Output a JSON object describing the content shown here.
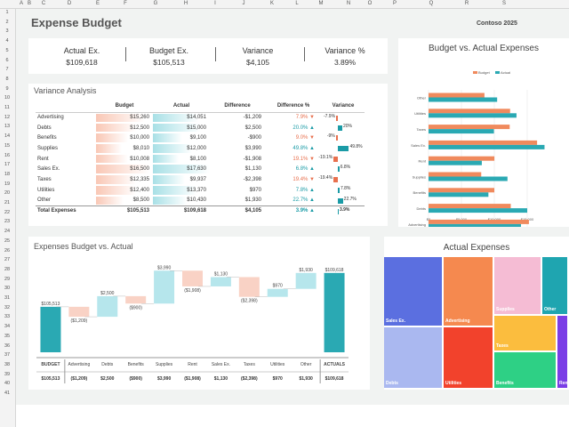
{
  "spreadsheet": {
    "columns": [
      "A",
      "B",
      "C",
      "D",
      "E",
      "F",
      "G",
      "H",
      "I",
      "J",
      "K",
      "L",
      "M",
      "N",
      "O",
      "P",
      "Q",
      "R",
      "S"
    ],
    "rows": [
      "1",
      "2",
      "3",
      "4",
      "5",
      "6",
      "7",
      "8",
      "9",
      "10",
      "11",
      "12",
      "13",
      "14",
      "15",
      "16",
      "17",
      "18",
      "19",
      "20",
      "21",
      "22",
      "23",
      "24",
      "25",
      "26",
      "27",
      "28",
      "29",
      "30",
      "31",
      "32",
      "33",
      "34",
      "35",
      "36",
      "37",
      "38",
      "39",
      "40",
      "41"
    ]
  },
  "header": {
    "title": "Expense Budget",
    "company": "Contoso 2025"
  },
  "kpis": [
    {
      "label": "Actual Ex.",
      "value": "$109,618"
    },
    {
      "label": "Budget Ex.",
      "value": "$105,513"
    },
    {
      "label": "Variance",
      "value": "$4,105"
    },
    {
      "label": "Variance %",
      "value": "3.89%"
    }
  ],
  "variance_analysis": {
    "title": "Variance Analysis",
    "headers": [
      "",
      "Budget",
      "Actual",
      "Difference",
      "Difference %",
      "Variance"
    ],
    "rows": [
      {
        "category": "Advertising",
        "budget": "$15,260",
        "actual": "$14,051",
        "difference": "-$1,209",
        "pct": "7.9%",
        "dir": "down",
        "variance": "-7.9%",
        "v": -7.9,
        "b": 15260,
        "a": 14051
      },
      {
        "category": "Debts",
        "budget": "$12,500",
        "actual": "$15,000",
        "difference": "$2,500",
        "pct": "20.0%",
        "dir": "up",
        "variance": "20%",
        "v": 20,
        "b": 12500,
        "a": 15000
      },
      {
        "category": "Benefits",
        "budget": "$10,000",
        "actual": "$9,100",
        "difference": "-$900",
        "pct": "9.0%",
        "dir": "down",
        "variance": "-9%",
        "v": -9,
        "b": 10000,
        "a": 9100
      },
      {
        "category": "Supplies",
        "budget": "$8,010",
        "actual": "$12,000",
        "difference": "$3,990",
        "pct": "49.8%",
        "dir": "up",
        "variance": "49.8%",
        "v": 49.8,
        "b": 8010,
        "a": 12000
      },
      {
        "category": "Rent",
        "budget": "$10,008",
        "actual": "$8,100",
        "difference": "-$1,908",
        "pct": "19.1%",
        "dir": "down",
        "variance": "-19.1%",
        "v": -19.1,
        "b": 10008,
        "a": 8100
      },
      {
        "category": "Sales Ex.",
        "budget": "$16,500",
        "actual": "$17,630",
        "difference": "$1,130",
        "pct": "6.8%",
        "dir": "up",
        "variance": "6.8%",
        "v": 6.8,
        "b": 16500,
        "a": 17630
      },
      {
        "category": "Taxes",
        "budget": "$12,335",
        "actual": "$9,937",
        "difference": "-$2,398",
        "pct": "19.4%",
        "dir": "down",
        "variance": "-19.4%",
        "v": -19.4,
        "b": 12335,
        "a": 9937
      },
      {
        "category": "Utilities",
        "budget": "$12,400",
        "actual": "$13,370",
        "difference": "$970",
        "pct": "7.8%",
        "dir": "up",
        "variance": "7.8%",
        "v": 7.8,
        "b": 12400,
        "a": 13370
      },
      {
        "category": "Other",
        "budget": "$8,500",
        "actual": "$10,430",
        "difference": "$1,930",
        "pct": "22.7%",
        "dir": "up",
        "variance": "22.7%",
        "v": 22.7,
        "b": 8500,
        "a": 10430
      }
    ],
    "total": {
      "category": "Total Expenses",
      "budget": "$105,513",
      "actual": "$109,618",
      "difference": "$4,105",
      "pct": "3.9%",
      "dir": "up",
      "variance": "3.9%",
      "v": 3.9
    }
  },
  "colors": {
    "budget": "#f08a5d",
    "actual": "#2aa9b3",
    "neg": "#e8704e",
    "pos": "#1a9ba6",
    "wf_up": "#b6e6ec",
    "wf_down": "#f9d2c5",
    "wf_total": "#2aa9b3"
  },
  "chart_data": [
    {
      "type": "bar",
      "orientation": "horizontal",
      "title": "Budget vs. Actual Expenses",
      "categories": [
        "Other",
        "Utilities",
        "Taxes",
        "Sales Ex.",
        "Rent",
        "Supplies",
        "Benefits",
        "Debts",
        "Advertising"
      ],
      "series": [
        {
          "name": "Budget",
          "values": [
            8500,
            12400,
            12335,
            16500,
            10008,
            8010,
            10000,
            12500,
            15260
          ]
        },
        {
          "name": "Actual",
          "values": [
            10430,
            13370,
            9937,
            17630,
            8100,
            12000,
            9100,
            15000,
            14051
          ]
        }
      ],
      "xlim": [
        0,
        20000
      ],
      "xticks": [
        "$0",
        "$5,000",
        "$10,000",
        "$15,000"
      ],
      "legend": "top"
    },
    {
      "type": "waterfall",
      "title": "Expenses Budget vs. Actual",
      "categories": [
        "BUDGET",
        "Advertising",
        "Debts",
        "Benefits",
        "Supplies",
        "Rent",
        "Sales Ex.",
        "Taxes",
        "Utilities",
        "Other",
        "ACTUALS"
      ],
      "values": [
        105513,
        -1209,
        2500,
        -900,
        3990,
        -1908,
        1130,
        -2398,
        970,
        1930,
        109618
      ],
      "labels": [
        "$105,513",
        "($1,209)",
        "$2,500",
        "($900)",
        "$3,990",
        "($1,908)",
        "$1,130",
        "($2,398)",
        "$970",
        "$1,930",
        "$109,618"
      ],
      "ylim": [
        100000,
        111000
      ]
    },
    {
      "type": "treemap",
      "title": "Actual Expenses",
      "items": [
        {
          "label": "Sales Ex.",
          "value": 17630,
          "color": "#5b6fe0"
        },
        {
          "label": "Advertising",
          "value": 14051,
          "color": "#f5894f"
        },
        {
          "label": "Supplies",
          "value": 12000,
          "color": "#f5bcd4"
        },
        {
          "label": "Other",
          "value": 10430,
          "color": "#1fa5b0"
        },
        {
          "label": "Debts",
          "value": 15000,
          "color": "#aab8f0"
        },
        {
          "label": "Utilities",
          "value": 13370,
          "color": "#f2422c"
        },
        {
          "label": "Taxes",
          "value": 9937,
          "color": "#fbbd3e"
        },
        {
          "label": "Benefits",
          "value": 9100,
          "color": "#2ed085"
        },
        {
          "label": "Rent",
          "value": 8100,
          "color": "#7a3ee6"
        }
      ]
    }
  ]
}
